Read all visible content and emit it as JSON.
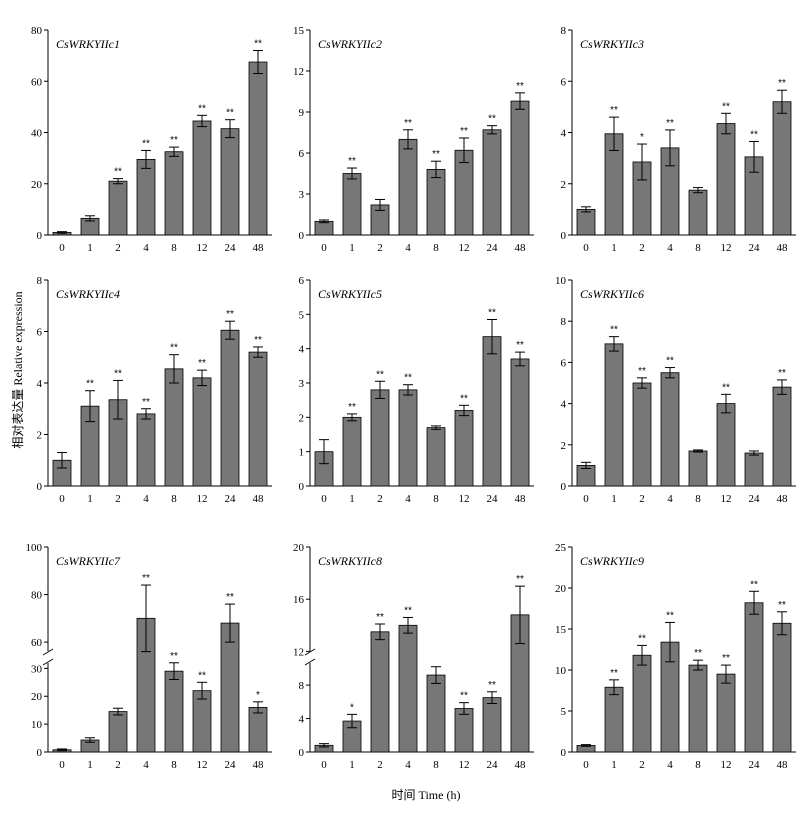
{
  "axis_labels": {
    "y": "相对表达量 Relative expression",
    "x": "时间 Time (h)"
  },
  "colors": {
    "bar": "#777777",
    "axis": "#000000"
  },
  "chart_data": [
    {
      "type": "bar",
      "title": "CsWRKYIIc1",
      "categories": [
        "0",
        "1",
        "2",
        "4",
        "8",
        "12",
        "24",
        "48"
      ],
      "values": [
        1,
        6.5,
        21,
        29.5,
        32.5,
        44.5,
        41.5,
        67.5
      ],
      "errors": [
        0.3,
        1.0,
        1.0,
        3.5,
        1.8,
        2.2,
        3.5,
        4.5
      ],
      "significance": [
        "",
        "",
        "**",
        "**",
        "**",
        "**",
        "**",
        "**"
      ],
      "ylim": [
        0,
        80
      ],
      "yticks": [
        0,
        20,
        40,
        60,
        80
      ]
    },
    {
      "type": "bar",
      "title": "CsWRKYIIc2",
      "categories": [
        "0",
        "1",
        "2",
        "4",
        "8",
        "12",
        "24",
        "48"
      ],
      "values": [
        1,
        4.5,
        2.2,
        7,
        4.8,
        6.2,
        7.7,
        9.8
      ],
      "errors": [
        0.1,
        0.4,
        0.4,
        0.7,
        0.6,
        0.9,
        0.3,
        0.6
      ],
      "significance": [
        "",
        "**",
        "",
        "**",
        "**",
        "**",
        "**",
        "**"
      ],
      "ylim": [
        0,
        15
      ],
      "yticks": [
        0,
        3,
        6,
        9,
        12,
        15
      ]
    },
    {
      "type": "bar",
      "title": "CsWRKYIIc3",
      "categories": [
        "0",
        "1",
        "2",
        "4",
        "8",
        "12",
        "24",
        "48"
      ],
      "values": [
        1,
        3.95,
        2.85,
        3.4,
        1.75,
        4.35,
        3.05,
        5.2
      ],
      "errors": [
        0.1,
        0.65,
        0.7,
        0.7,
        0.1,
        0.4,
        0.6,
        0.45
      ],
      "significance": [
        "",
        "**",
        "*",
        "**",
        "",
        "**",
        "**",
        "**"
      ],
      "ylim": [
        0,
        8
      ],
      "yticks": [
        0,
        2,
        4,
        6,
        8
      ]
    },
    {
      "type": "bar",
      "title": "CsWRKYIIc4",
      "categories": [
        "0",
        "1",
        "2",
        "4",
        "8",
        "12",
        "24",
        "48"
      ],
      "values": [
        1,
        3.1,
        3.35,
        2.8,
        4.55,
        4.2,
        6.05,
        5.2
      ],
      "errors": [
        0.3,
        0.6,
        0.75,
        0.2,
        0.55,
        0.3,
        0.35,
        0.2
      ],
      "significance": [
        "",
        "**",
        "**",
        "**",
        "**",
        "**",
        "**",
        "**"
      ],
      "ylim": [
        0,
        8
      ],
      "yticks": [
        0,
        2,
        4,
        6,
        8
      ]
    },
    {
      "type": "bar",
      "title": "CsWRKYIIc5",
      "categories": [
        "0",
        "1",
        "2",
        "4",
        "8",
        "12",
        "24",
        "48"
      ],
      "values": [
        1,
        2,
        2.8,
        2.8,
        1.7,
        2.2,
        4.35,
        3.7
      ],
      "errors": [
        0.35,
        0.1,
        0.25,
        0.15,
        0.05,
        0.15,
        0.5,
        0.2
      ],
      "significance": [
        "",
        "**",
        "**",
        "**",
        "",
        "**",
        "**",
        "**"
      ],
      "ylim": [
        0,
        6
      ],
      "yticks": [
        0,
        1,
        2,
        3,
        4,
        5,
        6
      ]
    },
    {
      "type": "bar",
      "title": "CsWRKYIIc6",
      "categories": [
        "0",
        "1",
        "2",
        "4",
        "8",
        "12",
        "24",
        "48"
      ],
      "values": [
        1,
        6.9,
        5,
        5.5,
        1.7,
        4,
        1.6,
        4.8
      ],
      "errors": [
        0.15,
        0.35,
        0.25,
        0.25,
        0.05,
        0.45,
        0.1,
        0.35
      ],
      "significance": [
        "",
        "**",
        "**",
        "**",
        "",
        "**",
        "",
        "**"
      ],
      "ylim": [
        0,
        10
      ],
      "yticks": [
        0,
        2,
        4,
        6,
        8,
        10
      ]
    },
    {
      "type": "bar",
      "title": "CsWRKYIIc7",
      "categories": [
        "0",
        "1",
        "2",
        "4",
        "8",
        "12",
        "24",
        "48"
      ],
      "values": [
        0.8,
        4.3,
        14.5,
        70,
        29,
        22,
        68,
        16
      ],
      "errors": [
        0.3,
        0.8,
        1.2,
        14,
        3,
        3,
        8,
        2
      ],
      "significance": [
        "",
        "",
        "",
        "**",
        "**",
        "**",
        "**",
        "*"
      ],
      "broken_axis": {
        "lower": [
          0,
          33
        ],
        "upper": [
          55,
          100
        ],
        "yticks_lower": [
          0,
          10,
          20,
          30
        ],
        "yticks_upper": [
          60,
          80,
          100
        ]
      }
    },
    {
      "type": "bar",
      "title": "CsWRKYIIc8",
      "categories": [
        "0",
        "1",
        "2",
        "4",
        "8",
        "12",
        "24",
        "48"
      ],
      "values": [
        0.8,
        3.7,
        13.5,
        14,
        9.2,
        5.2,
        6.5,
        14.8
      ],
      "errors": [
        0.2,
        0.8,
        0.6,
        0.6,
        1,
        0.7,
        0.7,
        2.2
      ],
      "significance": [
        "",
        "*",
        "**",
        "**",
        "",
        "**",
        "**",
        "**"
      ],
      "broken_axis": {
        "lower": [
          0,
          11
        ],
        "upper": [
          11.8,
          20
        ],
        "yticks_lower": [
          0,
          4,
          8
        ],
        "yticks_upper": [
          12,
          16,
          20
        ]
      }
    },
    {
      "type": "bar",
      "title": "CsWRKYIIc9",
      "categories": [
        "0",
        "1",
        "2",
        "4",
        "8",
        "12",
        "24",
        "48"
      ],
      "values": [
        0.8,
        7.9,
        11.8,
        13.4,
        10.6,
        9.5,
        18.2,
        15.7
      ],
      "errors": [
        0.1,
        0.9,
        1.2,
        2.4,
        0.6,
        1.1,
        1.4,
        1.4
      ],
      "significance": [
        "",
        "**",
        "**",
        "**",
        "**",
        "**",
        "**",
        "**"
      ],
      "ylim": [
        0,
        25
      ],
      "yticks": [
        0,
        5,
        10,
        15,
        20,
        25
      ]
    }
  ]
}
